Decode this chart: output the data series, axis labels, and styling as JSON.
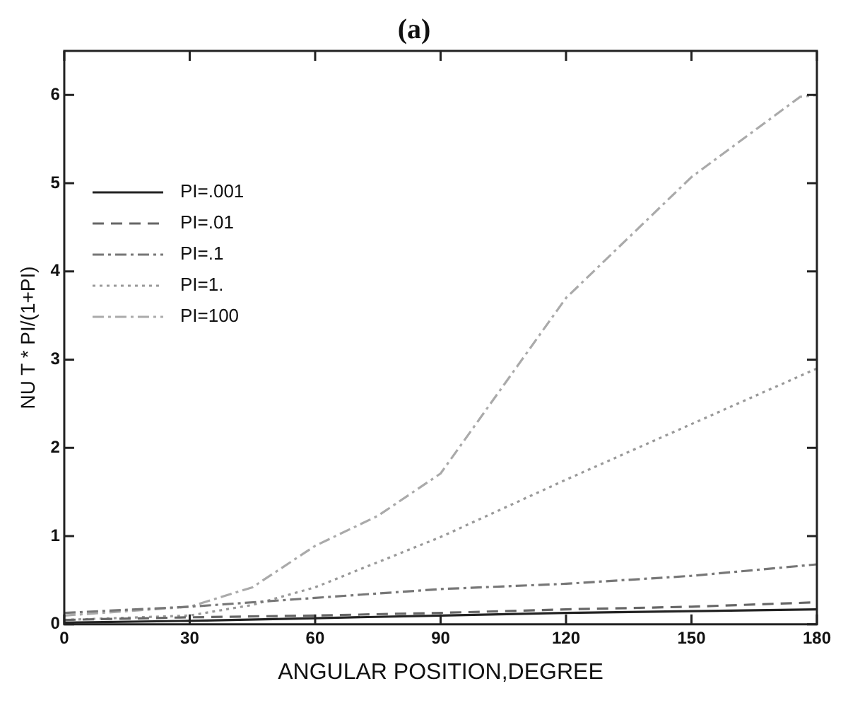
{
  "chart_data": {
    "type": "line",
    "title": "(a)",
    "xlabel": "ANGULAR POSITION,DEGREE",
    "ylabel": "NU T * PI/(1+PI)",
    "xlim": [
      0,
      180
    ],
    "xticks": [
      0,
      30,
      60,
      90,
      120,
      150,
      180
    ],
    "ylim": [
      0,
      6.5
    ],
    "yticks": [
      0,
      1,
      2,
      3,
      4,
      5,
      6
    ],
    "legend": "top left",
    "marker": "none",
    "grid": false,
    "series": [
      {
        "name": "PI=.001",
        "color": "#222222",
        "line_style": "solid",
        "x": [
          0,
          30,
          60,
          90,
          120,
          150,
          180
        ],
        "values": [
          0.02,
          0.04,
          0.07,
          0.1,
          0.13,
          0.15,
          0.17
        ]
      },
      {
        "name": "PI=.01",
        "color": "#666666",
        "line_style": "dashed",
        "x": [
          0,
          30,
          60,
          90,
          120,
          150,
          180
        ],
        "values": [
          0.05,
          0.08,
          0.1,
          0.13,
          0.17,
          0.2,
          0.25
        ]
      },
      {
        "name": "PI=.1",
        "color": "#777777",
        "line_style": "dashdot",
        "x": [
          0,
          30,
          60,
          90,
          120,
          150,
          180
        ],
        "values": [
          0.13,
          0.2,
          0.3,
          0.4,
          0.46,
          0.55,
          0.68
        ]
      },
      {
        "name": "PI=1.",
        "color": "#999999",
        "line_style": "dotted",
        "x": [
          0,
          30,
          45,
          60,
          90,
          120,
          150,
          180
        ],
        "values": [
          0.05,
          0.1,
          0.22,
          0.42,
          0.99,
          1.64,
          2.27,
          2.9
        ]
      },
      {
        "name": "PI=100",
        "color": "#aaaaaa",
        "line_style": "dashdot",
        "x": [
          0,
          30,
          45,
          60,
          75,
          90,
          120,
          150,
          176,
          180
        ],
        "values": [
          0.1,
          0.2,
          0.42,
          0.89,
          1.23,
          1.71,
          3.7,
          5.07,
          5.98,
          6.0
        ]
      }
    ]
  }
}
